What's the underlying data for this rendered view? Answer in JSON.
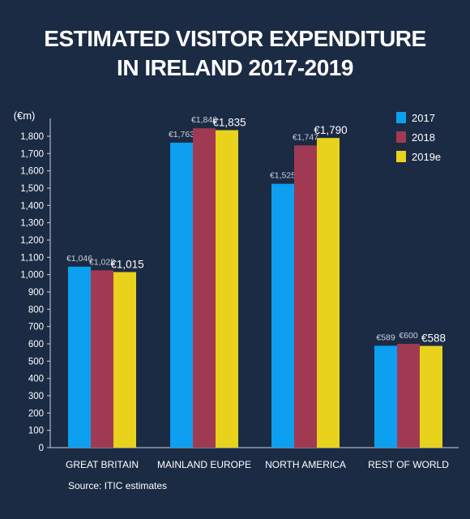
{
  "title_lines": [
    "ESTIMATED VISITOR EXPENDITURE",
    "IN IRELAND 2017-2019"
  ],
  "source": "Source: ITIC estimates",
  "chart_data": {
    "type": "bar",
    "title": "ESTIMATED VISITOR EXPENDITURE IN IRELAND 2017-2019",
    "ylabel": "(€m)",
    "ylim": [
      0,
      1900
    ],
    "yticks": [
      0,
      100,
      200,
      300,
      400,
      500,
      600,
      700,
      800,
      900,
      1000,
      1100,
      1200,
      1300,
      1400,
      1500,
      1600,
      1700,
      1800
    ],
    "categories": [
      "GREAT BRITAIN",
      "MAINLAND EUROPE",
      "NORTH AMERICA",
      "REST OF WORLD"
    ],
    "series": [
      {
        "name": "2017",
        "color": "#0d9ff0",
        "values": [
          1046,
          1763,
          1525,
          589
        ],
        "labels": [
          "€1,046",
          "€1,763",
          "€1,525",
          "€589"
        ]
      },
      {
        "name": "2018",
        "color": "#a03a52",
        "values": [
          1025,
          1846,
          1747,
          600
        ],
        "labels": [
          "€1,025",
          "€1,846",
          "€1,747",
          "€600"
        ]
      },
      {
        "name": "2019e",
        "color": "#e8d21c",
        "values": [
          1015,
          1835,
          1790,
          588
        ],
        "labels": [
          "€1,015",
          "€1,835",
          "€1,790",
          "€588"
        ]
      }
    ],
    "legend_position": "top-right",
    "grid": false
  }
}
